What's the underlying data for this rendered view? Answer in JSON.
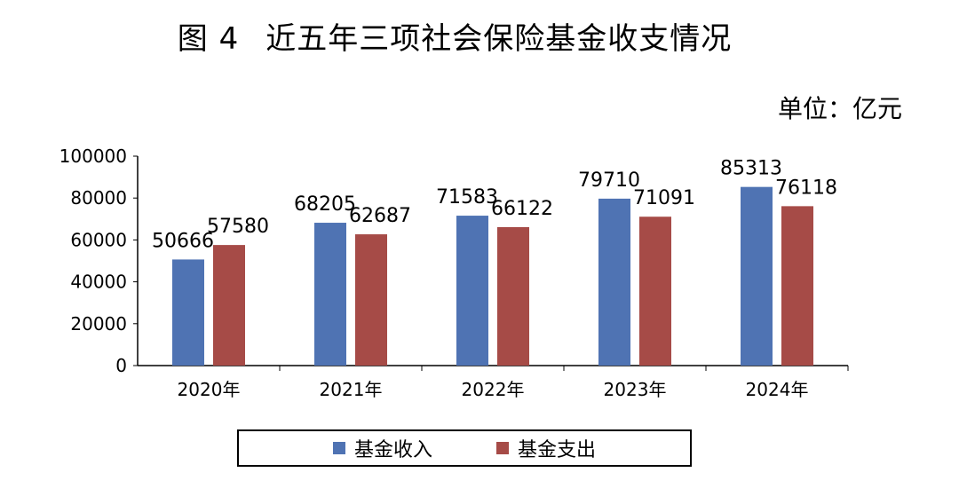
{
  "title_fig": "图 4",
  "title_text": "近五年三项社会保险基金收支情况",
  "unit": "单位：亿元",
  "colors": {
    "income": "#4F73B3",
    "expense": "#A64B47"
  },
  "chart_data": {
    "type": "bar",
    "categories": [
      "2020年",
      "2021年",
      "2022年",
      "2023年",
      "2024年"
    ],
    "series": [
      {
        "name": "基金收入",
        "values": [
          50666,
          68205,
          71583,
          79710,
          85313
        ]
      },
      {
        "name": "基金支出",
        "values": [
          57580,
          62687,
          66122,
          71091,
          76118
        ]
      }
    ],
    "ylim": [
      0,
      100000
    ],
    "yticks": [
      0,
      20000,
      40000,
      60000,
      80000,
      100000
    ],
    "legend": "bottom",
    "grid": false
  }
}
